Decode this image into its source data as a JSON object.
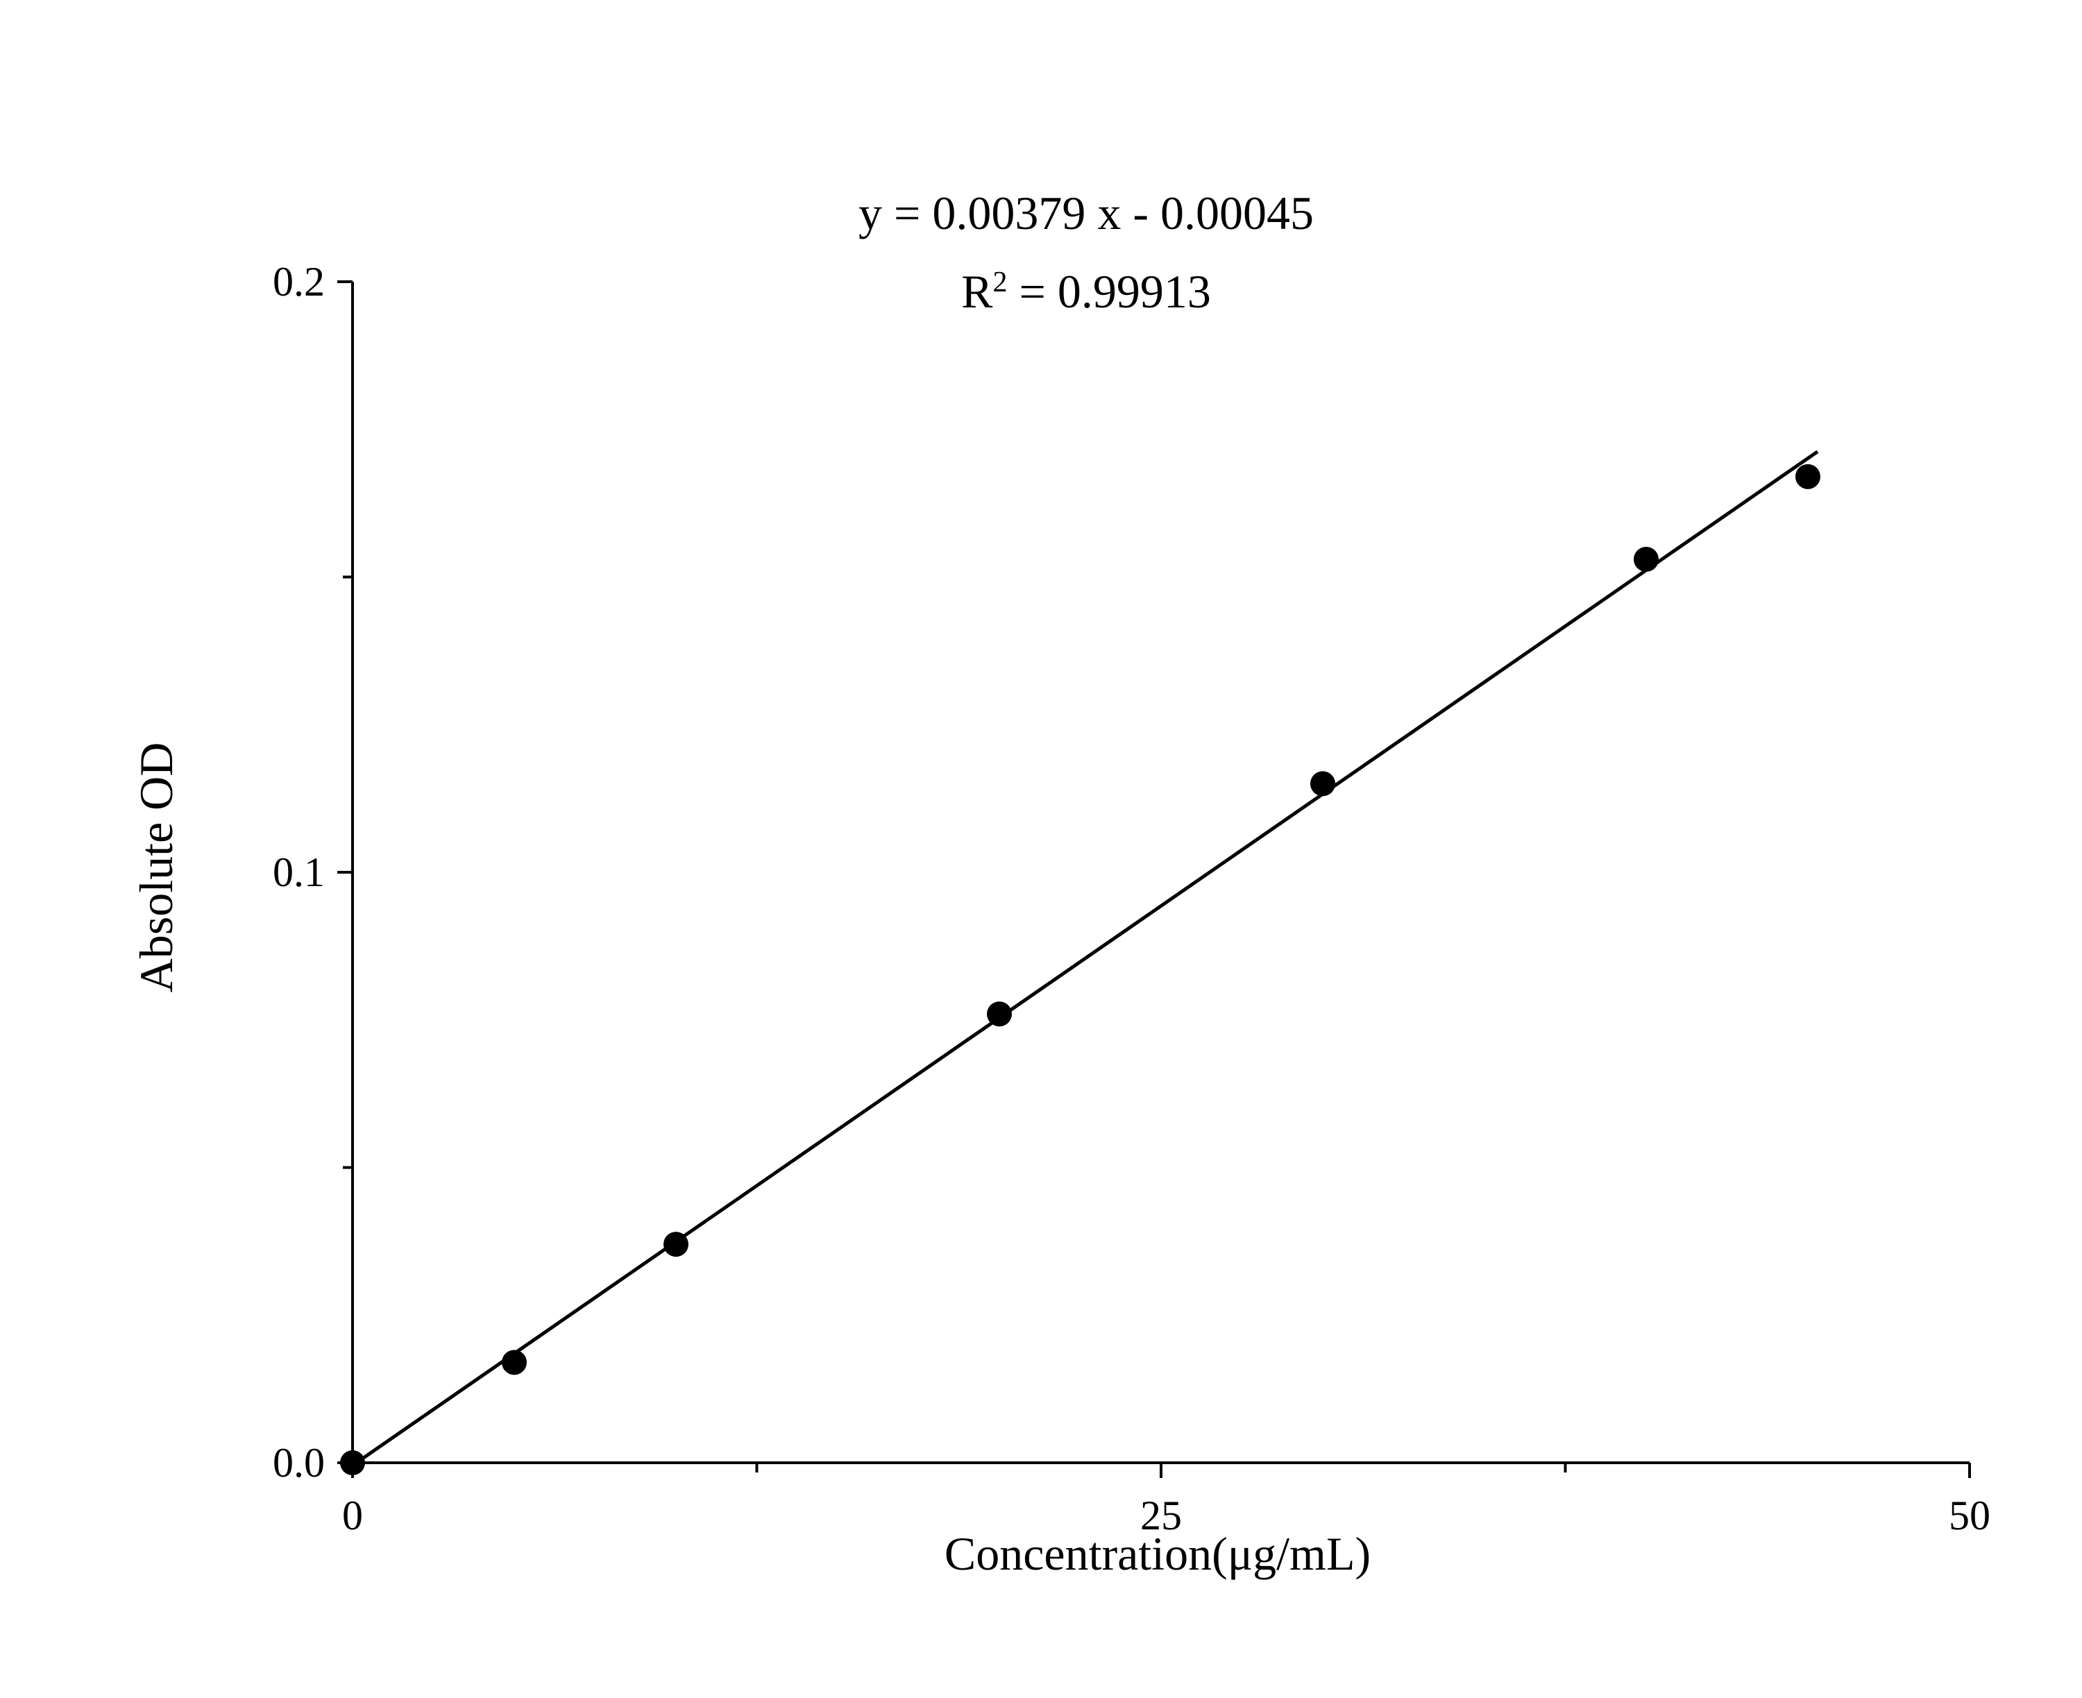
{
  "chart_data": {
    "type": "scatter",
    "title": "",
    "xlabel": "Concentration(μg/mL)",
    "ylabel": "Absolute OD",
    "xlim": [
      0,
      50
    ],
    "ylim": [
      0,
      0.2
    ],
    "x_ticks": [
      {
        "value": 0,
        "label": "0"
      },
      {
        "value": 25,
        "label": "25"
      },
      {
        "value": 50,
        "label": "50"
      }
    ],
    "x_minor_ticks": [
      12.5,
      37.5
    ],
    "y_ticks": [
      {
        "value": 0,
        "label": "0.0"
      },
      {
        "value": 0.1,
        "label": "0.1"
      },
      {
        "value": 0.2,
        "label": "0.2"
      }
    ],
    "y_minor_ticks": [
      0.05,
      0.15
    ],
    "grid": false,
    "legend": "none",
    "series": [
      {
        "x": [
          0,
          5,
          10,
          20,
          30,
          40,
          45
        ],
        "y": [
          0.0,
          0.017,
          0.037,
          0.076,
          0.115,
          0.153,
          0.167
        ]
      }
    ],
    "fit": {
      "type": "linear",
      "slope": 0.00379,
      "intercept": -0.00045,
      "x_range": [
        0,
        45.3
      ],
      "equation_label": "y = 0.00379 x - 0.00045",
      "r2_prefix": "R",
      "r2_exponent": "2",
      "r2_value": " = 0.99913"
    },
    "colors": {
      "axis": "#000000",
      "marker": "#000000",
      "fit_line": "#000000"
    }
  }
}
